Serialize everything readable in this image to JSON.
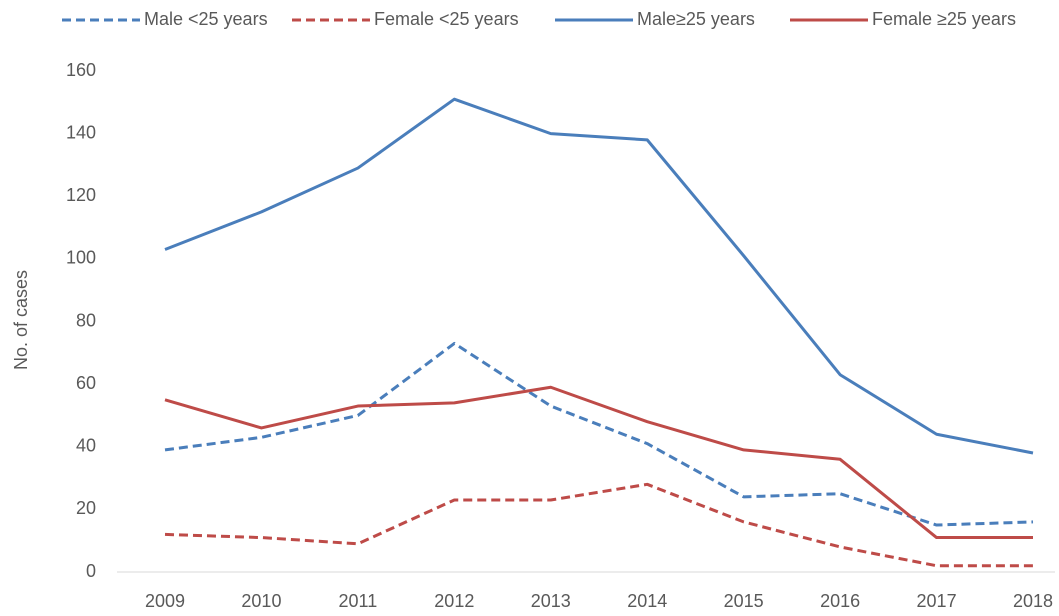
{
  "chart_data": {
    "type": "line",
    "ylabel": "No. of cases",
    "categories": [
      "2009",
      "2010",
      "2011",
      "2012",
      "2013",
      "2014",
      "2015",
      "2016",
      "2017",
      "2018"
    ],
    "series": [
      {
        "name": "Male <25 years",
        "color": "#4a7ebb",
        "dashed": true,
        "values": [
          39,
          43,
          50,
          73,
          53,
          41,
          24,
          25,
          15,
          16
        ]
      },
      {
        "name": "Female <25 years",
        "color": "#be4b48",
        "dashed": true,
        "values": [
          12,
          11,
          9,
          23,
          23,
          28,
          16,
          8,
          2,
          2
        ]
      },
      {
        "name": "Male≥25 years",
        "color": "#4a7ebb",
        "dashed": false,
        "values": [
          103,
          115,
          129,
          151,
          140,
          138,
          101,
          63,
          44,
          38
        ]
      },
      {
        "name": "Female ≥25 years",
        "color": "#be4b48",
        "dashed": false,
        "values": [
          55,
          46,
          53,
          54,
          59,
          48,
          39,
          36,
          11,
          11
        ]
      }
    ],
    "ylim": [
      0,
      160
    ],
    "yticks": [
      0,
      20,
      40,
      60,
      80,
      100,
      120,
      140,
      160
    ],
    "grid": false,
    "legend": "top"
  }
}
